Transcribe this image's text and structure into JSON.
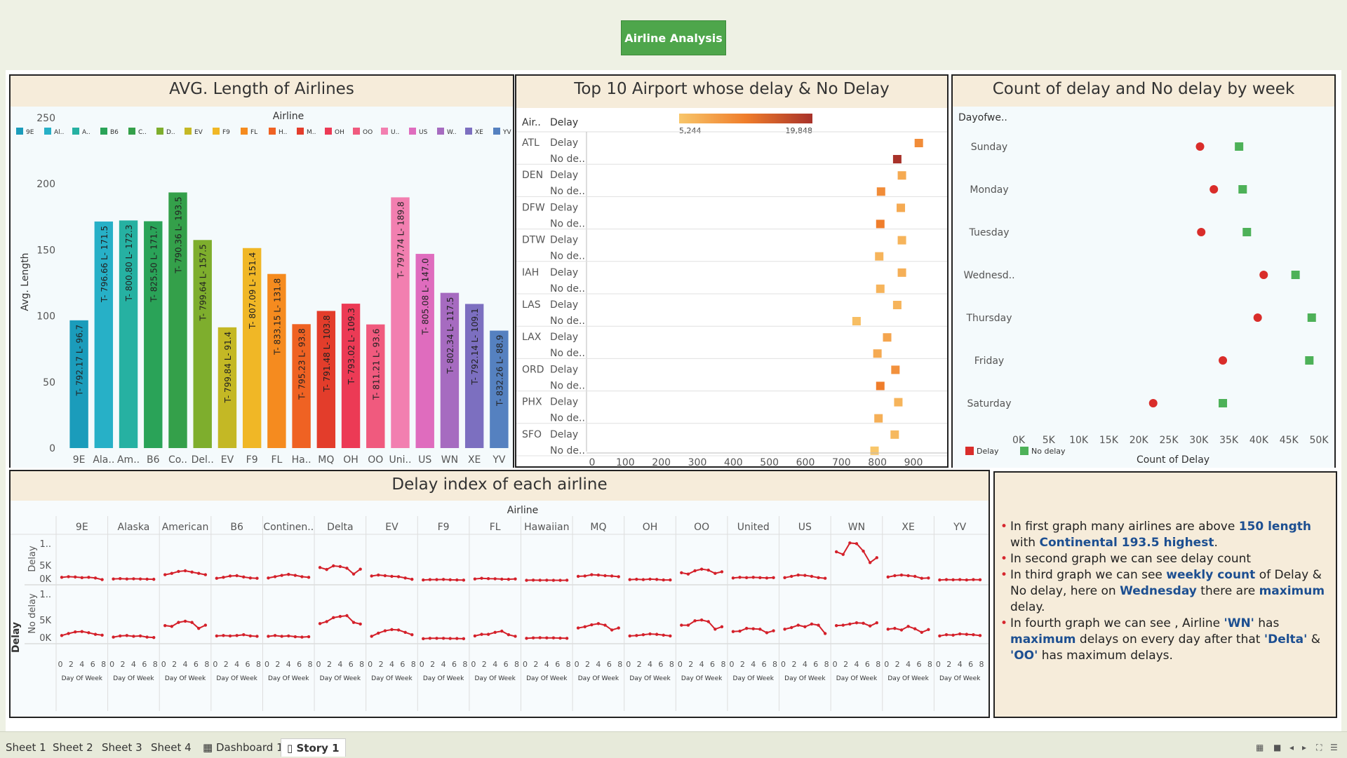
{
  "app": {
    "story_button": "Airline Analysis"
  },
  "panel1": {
    "title": "AVG. Length of Airlines",
    "legend_title": "Airline",
    "legend": [
      "9E",
      "Al..",
      "A..",
      "B6",
      "C..",
      "D..",
      "EV",
      "F9",
      "FL",
      "H..",
      "M..",
      "OH",
      "OO",
      "U..",
      "US",
      "W..",
      "XE",
      "YV"
    ]
  },
  "panel2": {
    "title": "Top 10 Airport whose delay & No Delay",
    "col_headers": [
      "Air..",
      "Delay"
    ],
    "color_min": "5,244",
    "color_max": "19,848",
    "row_labels": [
      "Delay",
      "No de.."
    ]
  },
  "panel3": {
    "title": "Count of delay and No delay by week",
    "row_header": "Dayofwe..",
    "legend": [
      "Delay",
      "No delay"
    ]
  },
  "panel4": {
    "title": "Delay index of each airline",
    "col_title": "Airline",
    "row_title": "Delay",
    "row_labels": [
      "Delay",
      "No delay"
    ],
    "y_ticks": [
      "1..",
      "5K",
      "0K"
    ],
    "x_ticks": [
      "0",
      "2",
      "4",
      "6",
      "8"
    ],
    "x_label": "Day Of Week"
  },
  "notes": {
    "items": [
      {
        "parts": [
          {
            "t": "In first graph many airlines are above ",
            "b": false
          },
          {
            "t": "150 length",
            "b": true
          },
          {
            "t": " with ",
            "b": false
          },
          {
            "t": "Continental 193.5 highest",
            "b": true
          },
          {
            "t": ".",
            "b": false
          }
        ]
      },
      {
        "parts": [
          {
            "t": "In second graph we can see delay count",
            "b": false
          }
        ]
      },
      {
        "parts": [
          {
            "t": "In third graph we can see ",
            "b": false
          },
          {
            "t": "weekly count",
            "b": true
          },
          {
            "t": " of Delay & No delay, here on ",
            "b": false
          },
          {
            "t": "Wednesday",
            "b": true
          },
          {
            "t": "  there are ",
            "b": false
          },
          {
            "t": "maximum",
            "b": true
          },
          {
            "t": " delay.",
            "b": false
          }
        ]
      },
      {
        "parts": [
          {
            "t": "In fourth graph we can see , Airline ",
            "b": false
          },
          {
            "t": "'WN'",
            "b": true
          },
          {
            "t": " has ",
            "b": false
          },
          {
            "t": "maximum",
            "b": true
          },
          {
            "t": " delays on every day after that ",
            "b": false
          },
          {
            "t": "'Delta'",
            "b": true
          },
          {
            "t": " & ",
            "b": false
          },
          {
            "t": "'OO'",
            "b": true
          },
          {
            "t": "  has maximum delays.",
            "b": false
          }
        ]
      }
    ]
  },
  "tabs": [
    "Sheet 1",
    "Sheet 2",
    "Sheet 3",
    "Sheet 4",
    "Dashboard 1",
    "Story 1"
  ],
  "chart_data": [
    {
      "type": "bar",
      "title": "AVG. Length of Airlines",
      "ylabel": "Avg. Length",
      "ylim": [
        0,
        250
      ],
      "y_ticks": [
        0,
        50,
        100,
        150,
        200,
        250
      ],
      "categories": [
        "9E",
        "Ala..",
        "Am..",
        "B6",
        "Co..",
        "Del..",
        "EV",
        "F9",
        "FL",
        "Ha..",
        "MQ",
        "OH",
        "OO",
        "Uni..",
        "US",
        "WN",
        "XE",
        "YV"
      ],
      "values": [
        96.7,
        171.5,
        172.3,
        171.7,
        193.5,
        157.5,
        91.4,
        151.4,
        131.8,
        93.8,
        103.8,
        109.3,
        93.6,
        189.8,
        147.0,
        117.5,
        109.1,
        88.9
      ],
      "labels": [
        "T- 792.17  L- 96.7",
        "T- 796.66  L- 171.5",
        "T- 800.80  L- 172.3",
        "T- 825.50  L- 171.7",
        "T- 790.36  L- 193.5",
        "T- 799.64  L- 157.5",
        "T- 799.84  L- 91.4",
        "T- 807.09  L- 151.4",
        "T- 833.15  L- 131.8",
        "T- 795.23  L- 93.8",
        "T- 791.48  L- 103.8",
        "T- 793.02  L- 109.3",
        "T- 811.21  L- 93.6",
        "T- 797.74  L- 189.8",
        "T- 805.08  L- 147.0",
        "T- 802.34  L- 117.5",
        "T- 792.14  L- 109.1",
        "T- 832.26  L- 88.9"
      ],
      "colors": [
        "#1b9cbb",
        "#27b0c7",
        "#26b1a2",
        "#2aa358",
        "#34a04a",
        "#7eae2d",
        "#c4b825",
        "#f0b726",
        "#f58b1f",
        "#ef6223",
        "#e33d2b",
        "#ec3a55",
        "#f05a7e",
        "#f27fb0",
        "#df6cbe",
        "#a66bc0",
        "#7c6fc0",
        "#5581c0"
      ],
      "legend": "top"
    },
    {
      "type": "scatter",
      "title": "Top 10 Airport whose delay & No Delay",
      "categories": [
        "ATL",
        "DEN",
        "DFW",
        "DTW",
        "IAH",
        "LAS",
        "LAX",
        "ORD",
        "PHX",
        "SFO"
      ],
      "series": [
        {
          "name": "Delay",
          "values": [
            915,
            868,
            865,
            868,
            868,
            855,
            827,
            850,
            858,
            848
          ]
        },
        {
          "name": "No de..",
          "values": [
            855,
            810,
            808,
            805,
            808,
            742,
            800,
            808,
            803,
            792
          ]
        }
      ],
      "color_values": {
        "Delay": [
          11000,
          8000,
          8000,
          7000,
          7500,
          7000,
          8500,
          10500,
          7000,
          6500
        ],
        "No de..": [
          19848,
          11000,
          12500,
          7000,
          7000,
          6000,
          8000,
          12500,
          7500,
          5244
        ]
      },
      "xlim": [
        0,
        960
      ],
      "x_ticks": [
        0,
        100,
        200,
        300,
        400,
        500,
        600,
        700,
        800,
        900
      ]
    },
    {
      "type": "scatter",
      "title": "Count of delay and No delay by week",
      "xlabel": "Count of Delay",
      "categories": [
        "Sunday",
        "Monday",
        "Tuesday",
        "Wednesd..",
        "Thursday",
        "Friday",
        "Saturday"
      ],
      "series": [
        {
          "name": "Delay",
          "values": [
            30200,
            32500,
            30400,
            40800,
            39800,
            34000,
            22400
          ],
          "color": "#d92d2a"
        },
        {
          "name": "No delay",
          "values": [
            36700,
            37300,
            38000,
            46100,
            48800,
            48400,
            34000
          ],
          "color": "#4db158"
        }
      ],
      "xlim": [
        0,
        50000
      ],
      "x_ticks": [
        "0K",
        "5K",
        "10K",
        "15K",
        "20K",
        "25K",
        "30K",
        "35K",
        "40K",
        "45K",
        "50K"
      ],
      "legend": "bottom-left"
    },
    {
      "type": "line",
      "title": "Delay index of each airline",
      "airlines": [
        "9E",
        "Alaska",
        "American",
        "B6",
        "Continen..",
        "Delta",
        "EV",
        "F9",
        "FL",
        "Hawaiian",
        "MQ",
        "OH",
        "OO",
        "United",
        "US",
        "WN",
        "XE",
        "YV"
      ],
      "x": [
        1,
        2,
        3,
        4,
        5,
        6,
        7
      ],
      "ylim": [
        0,
        12000
      ],
      "delay": [
        [
          1000,
          1200,
          1100,
          900,
          1000,
          800,
          300
        ],
        [
          500,
          600,
          500,
          550,
          500,
          450,
          400
        ],
        [
          1800,
          2200,
          2800,
          3000,
          2600,
          2200,
          1800
        ],
        [
          700,
          1000,
          1400,
          1500,
          1100,
          800,
          700
        ],
        [
          800,
          1200,
          1600,
          1900,
          1600,
          1200,
          1000
        ],
        [
          4000,
          3400,
          4500,
          4300,
          3800,
          2000,
          3500
        ],
        [
          1400,
          1700,
          1500,
          1300,
          1200,
          800,
          400
        ],
        [
          200,
          300,
          300,
          350,
          250,
          200,
          150
        ],
        [
          500,
          700,
          600,
          550,
          450,
          400,
          500
        ],
        [
          100,
          150,
          120,
          130,
          100,
          90,
          120
        ],
        [
          1300,
          1400,
          1800,
          1700,
          1500,
          1400,
          1200
        ],
        [
          300,
          400,
          300,
          450,
          350,
          200,
          200
        ],
        [
          2400,
          2000,
          3000,
          3500,
          3200,
          2200,
          2700
        ],
        [
          800,
          1000,
          900,
          1000,
          900,
          800,
          900
        ],
        [
          900,
          1300,
          1700,
          1600,
          1300,
          900,
          700
        ],
        [
          8800,
          8000,
          11500,
          11300,
          9000,
          5500,
          7000
        ],
        [
          1100,
          1500,
          1700,
          1500,
          1300,
          700,
          800
        ],
        [
          200,
          300,
          250,
          300,
          200,
          300,
          250
        ]
      ],
      "no_delay": [
        [
          1000,
          1500,
          1900,
          2000,
          1700,
          1300,
          1100
        ],
        [
          600,
          900,
          1000,
          800,
          900,
          600,
          500
        ],
        [
          3500,
          3300,
          4300,
          4600,
          4300,
          2800,
          3600
        ],
        [
          900,
          1000,
          900,
          1000,
          1200,
          900,
          800
        ],
        [
          800,
          1000,
          800,
          900,
          700,
          600,
          700
        ],
        [
          4000,
          4500,
          5500,
          5800,
          6000,
          4300,
          3900
        ],
        [
          800,
          1600,
          2200,
          2500,
          2400,
          1800,
          1200
        ],
        [
          200,
          300,
          300,
          300,
          250,
          250,
          200
        ],
        [
          900,
          1300,
          1300,
          1800,
          2100,
          1200,
          800
        ],
        [
          300,
          400,
          450,
          400,
          400,
          350,
          300
        ],
        [
          2900,
          3200,
          3700,
          4000,
          3600,
          2400,
          2900
        ],
        [
          900,
          1000,
          1200,
          1400,
          1300,
          1100,
          900
        ],
        [
          3600,
          3600,
          4700,
          4900,
          4500,
          2600,
          3200
        ],
        [
          2000,
          2100,
          2800,
          2700,
          2600,
          1700,
          2200
        ],
        [
          2600,
          3000,
          3600,
          3200,
          3900,
          3600,
          1500
        ],
        [
          3500,
          3600,
          3900,
          4200,
          4100,
          3400,
          4200
        ],
        [
          2600,
          2800,
          2400,
          3300,
          2700,
          1800,
          2500
        ],
        [
          900,
          1200,
          1100,
          1400,
          1300,
          1200,
          1000
        ]
      ]
    }
  ]
}
